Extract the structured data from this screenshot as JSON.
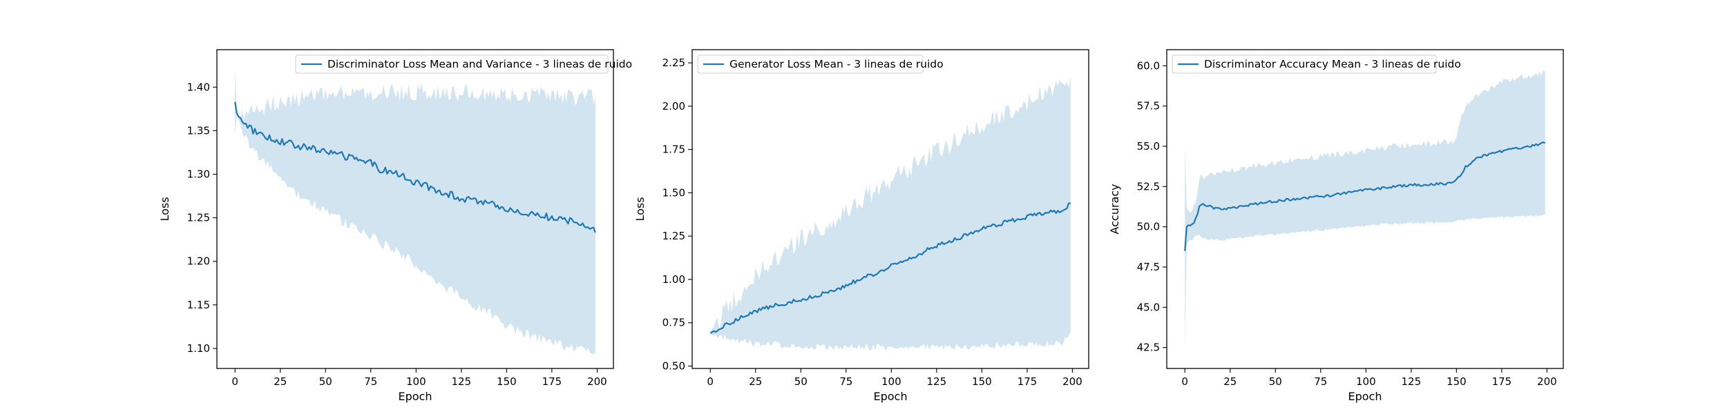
{
  "chart_data": [
    {
      "type": "line",
      "color": "#1f77b4",
      "band_color": "#1f77b4",
      "xlabel": "Epoch",
      "ylabel": "Loss",
      "xlim": [
        -10,
        209
      ],
      "ylim": [
        1.077,
        1.443
      ],
      "xticks": [
        0,
        25,
        50,
        75,
        100,
        125,
        150,
        175,
        200
      ],
      "xtick_labels": [
        "0",
        "25",
        "50",
        "75",
        "100",
        "125",
        "150",
        "175",
        "200"
      ],
      "yticks": [
        1.1,
        1.15,
        1.2,
        1.25,
        1.3,
        1.35,
        1.4
      ],
      "ytick_labels": [
        "1.10",
        "1.15",
        "1.20",
        "1.25",
        "1.30",
        "1.35",
        "1.40"
      ],
      "legend": {
        "label": "Discriminator Loss Mean and Variance - 3 lineas de ruido",
        "placement": "top-right"
      },
      "series": [
        {
          "x": [
            0,
            1,
            2,
            3,
            5,
            8,
            10,
            15,
            20,
            25,
            30,
            40,
            50,
            60,
            70,
            75,
            80,
            90,
            100,
            110,
            120,
            125,
            130,
            140,
            150,
            160,
            170,
            175,
            180,
            190,
            195,
            199
          ],
          "mean": [
            1.383,
            1.37,
            1.366,
            1.363,
            1.36,
            1.355,
            1.35,
            1.346,
            1.341,
            1.338,
            1.335,
            1.33,
            1.327,
            1.321,
            1.315,
            1.313,
            1.306,
            1.3,
            1.29,
            1.283,
            1.276,
            1.272,
            1.27,
            1.266,
            1.26,
            1.256,
            1.252,
            1.25,
            1.248,
            1.244,
            1.242,
            1.233
          ],
          "upper": [
            1.42,
            1.372,
            1.368,
            1.368,
            1.368,
            1.37,
            1.372,
            1.375,
            1.38,
            1.384,
            1.386,
            1.389,
            1.39,
            1.392,
            1.393,
            1.393,
            1.394,
            1.394,
            1.395,
            1.394,
            1.394,
            1.393,
            1.393,
            1.392,
            1.392,
            1.391,
            1.391,
            1.39,
            1.39,
            1.389,
            1.389,
            1.388
          ],
          "lower": [
            1.345,
            1.368,
            1.362,
            1.355,
            1.345,
            1.335,
            1.328,
            1.316,
            1.305,
            1.295,
            1.285,
            1.27,
            1.258,
            1.245,
            1.235,
            1.23,
            1.222,
            1.21,
            1.196,
            1.18,
            1.165,
            1.157,
            1.15,
            1.14,
            1.127,
            1.117,
            1.11,
            1.107,
            1.104,
            1.099,
            1.097,
            1.094
          ]
        }
      ]
    },
    {
      "type": "line",
      "color": "#1f77b4",
      "band_color": "#1f77b4",
      "xlabel": "Epoch",
      "ylabel": "Loss",
      "xlim": [
        -10,
        209
      ],
      "ylim": [
        0.486,
        2.326
      ],
      "xticks": [
        0,
        25,
        50,
        75,
        100,
        125,
        150,
        175,
        200
      ],
      "xtick_labels": [
        "0",
        "25",
        "50",
        "75",
        "100",
        "125",
        "150",
        "175",
        "200"
      ],
      "yticks": [
        0.5,
        0.75,
        1.0,
        1.25,
        1.5,
        1.75,
        2.0,
        2.25
      ],
      "ytick_labels": [
        "0.50",
        "0.75",
        "1.00",
        "1.25",
        "1.50",
        "1.75",
        "2.00",
        "2.25"
      ],
      "legend": {
        "label": "Generator Loss Mean - 3 lineas de ruido",
        "placement": "top-left"
      },
      "series": [
        {
          "x": [
            0,
            5,
            10,
            15,
            20,
            25,
            30,
            40,
            50,
            60,
            70,
            75,
            80,
            90,
            100,
            110,
            120,
            125,
            130,
            140,
            150,
            160,
            170,
            175,
            180,
            190,
            195,
            199
          ],
          "mean": [
            0.69,
            0.72,
            0.745,
            0.77,
            0.795,
            0.815,
            0.835,
            0.86,
            0.88,
            0.91,
            0.945,
            0.965,
            0.99,
            1.03,
            1.08,
            1.12,
            1.17,
            1.195,
            1.21,
            1.25,
            1.29,
            1.32,
            1.35,
            1.36,
            1.375,
            1.39,
            1.395,
            1.44
          ],
          "upper": [
            0.7,
            0.77,
            0.84,
            0.9,
            0.96,
            1.01,
            1.06,
            1.15,
            1.23,
            1.3,
            1.36,
            1.4,
            1.44,
            1.51,
            1.58,
            1.64,
            1.7,
            1.74,
            1.77,
            1.83,
            1.89,
            1.95,
            2.0,
            2.03,
            2.06,
            2.1,
            2.12,
            2.17
          ],
          "lower": [
            0.68,
            0.67,
            0.66,
            0.648,
            0.64,
            0.632,
            0.628,
            0.62,
            0.616,
            0.612,
            0.61,
            0.61,
            0.609,
            0.609,
            0.608,
            0.609,
            0.61,
            0.612,
            0.612,
            0.614,
            0.617,
            0.62,
            0.625,
            0.628,
            0.63,
            0.634,
            0.636,
            0.7
          ]
        }
      ]
    },
    {
      "type": "line",
      "color": "#1f77b4",
      "band_color": "#1f77b4",
      "xlabel": "Epoch",
      "ylabel": "Accuracy",
      "xlim": [
        -10,
        209
      ],
      "ylim": [
        41.2,
        61.0
      ],
      "xticks": [
        0,
        25,
        50,
        75,
        100,
        125,
        150,
        175,
        200
      ],
      "xtick_labels": [
        "0",
        "25",
        "50",
        "75",
        "100",
        "125",
        "150",
        "175",
        "200"
      ],
      "yticks": [
        42.5,
        45.0,
        47.5,
        50.0,
        52.5,
        55.0,
        57.5,
        60.0
      ],
      "ytick_labels": [
        "42.5",
        "45.0",
        "47.5",
        "50.0",
        "52.5",
        "55.0",
        "57.5",
        "60.0"
      ],
      "legend": {
        "label": "Discriminator Accuracy Mean - 3 lineas de ruido",
        "placement": "top-left"
      },
      "series": [
        {
          "x": [
            0,
            1,
            2,
            4,
            6,
            8,
            10,
            15,
            20,
            25,
            30,
            40,
            50,
            60,
            70,
            75,
            80,
            90,
            100,
            110,
            120,
            125,
            130,
            140,
            148,
            150,
            152,
            155,
            160,
            170,
            175,
            180,
            190,
            195,
            199
          ],
          "mean": [
            48.5,
            50.0,
            50.1,
            50.1,
            50.5,
            51.2,
            51.4,
            51.2,
            51.1,
            51.2,
            51.25,
            51.45,
            51.6,
            51.7,
            51.85,
            51.9,
            51.95,
            52.1,
            52.3,
            52.4,
            52.55,
            52.6,
            52.6,
            52.65,
            52.7,
            52.9,
            53.2,
            53.7,
            54.2,
            54.6,
            54.7,
            54.8,
            55.0,
            55.1,
            55.2
          ],
          "upper": [
            55.0,
            51.2,
            51.0,
            51.0,
            51.4,
            52.9,
            53.2,
            53.2,
            53.3,
            53.5,
            53.6,
            53.8,
            54.0,
            54.15,
            54.3,
            54.35,
            54.45,
            54.6,
            54.75,
            54.9,
            55.05,
            55.1,
            55.15,
            55.2,
            55.25,
            55.5,
            56.5,
            57.5,
            58.1,
            58.7,
            59.0,
            59.2,
            59.4,
            59.5,
            59.6
          ],
          "lower": [
            42.5,
            48.9,
            49.1,
            49.2,
            49.4,
            49.5,
            49.3,
            49.2,
            49.15,
            49.25,
            49.3,
            49.45,
            49.55,
            49.65,
            49.75,
            49.8,
            49.85,
            49.95,
            50.05,
            50.15,
            50.2,
            50.25,
            50.25,
            50.3,
            50.3,
            50.35,
            50.4,
            50.45,
            50.5,
            50.55,
            50.6,
            50.6,
            50.65,
            50.7,
            50.8
          ]
        }
      ]
    }
  ]
}
